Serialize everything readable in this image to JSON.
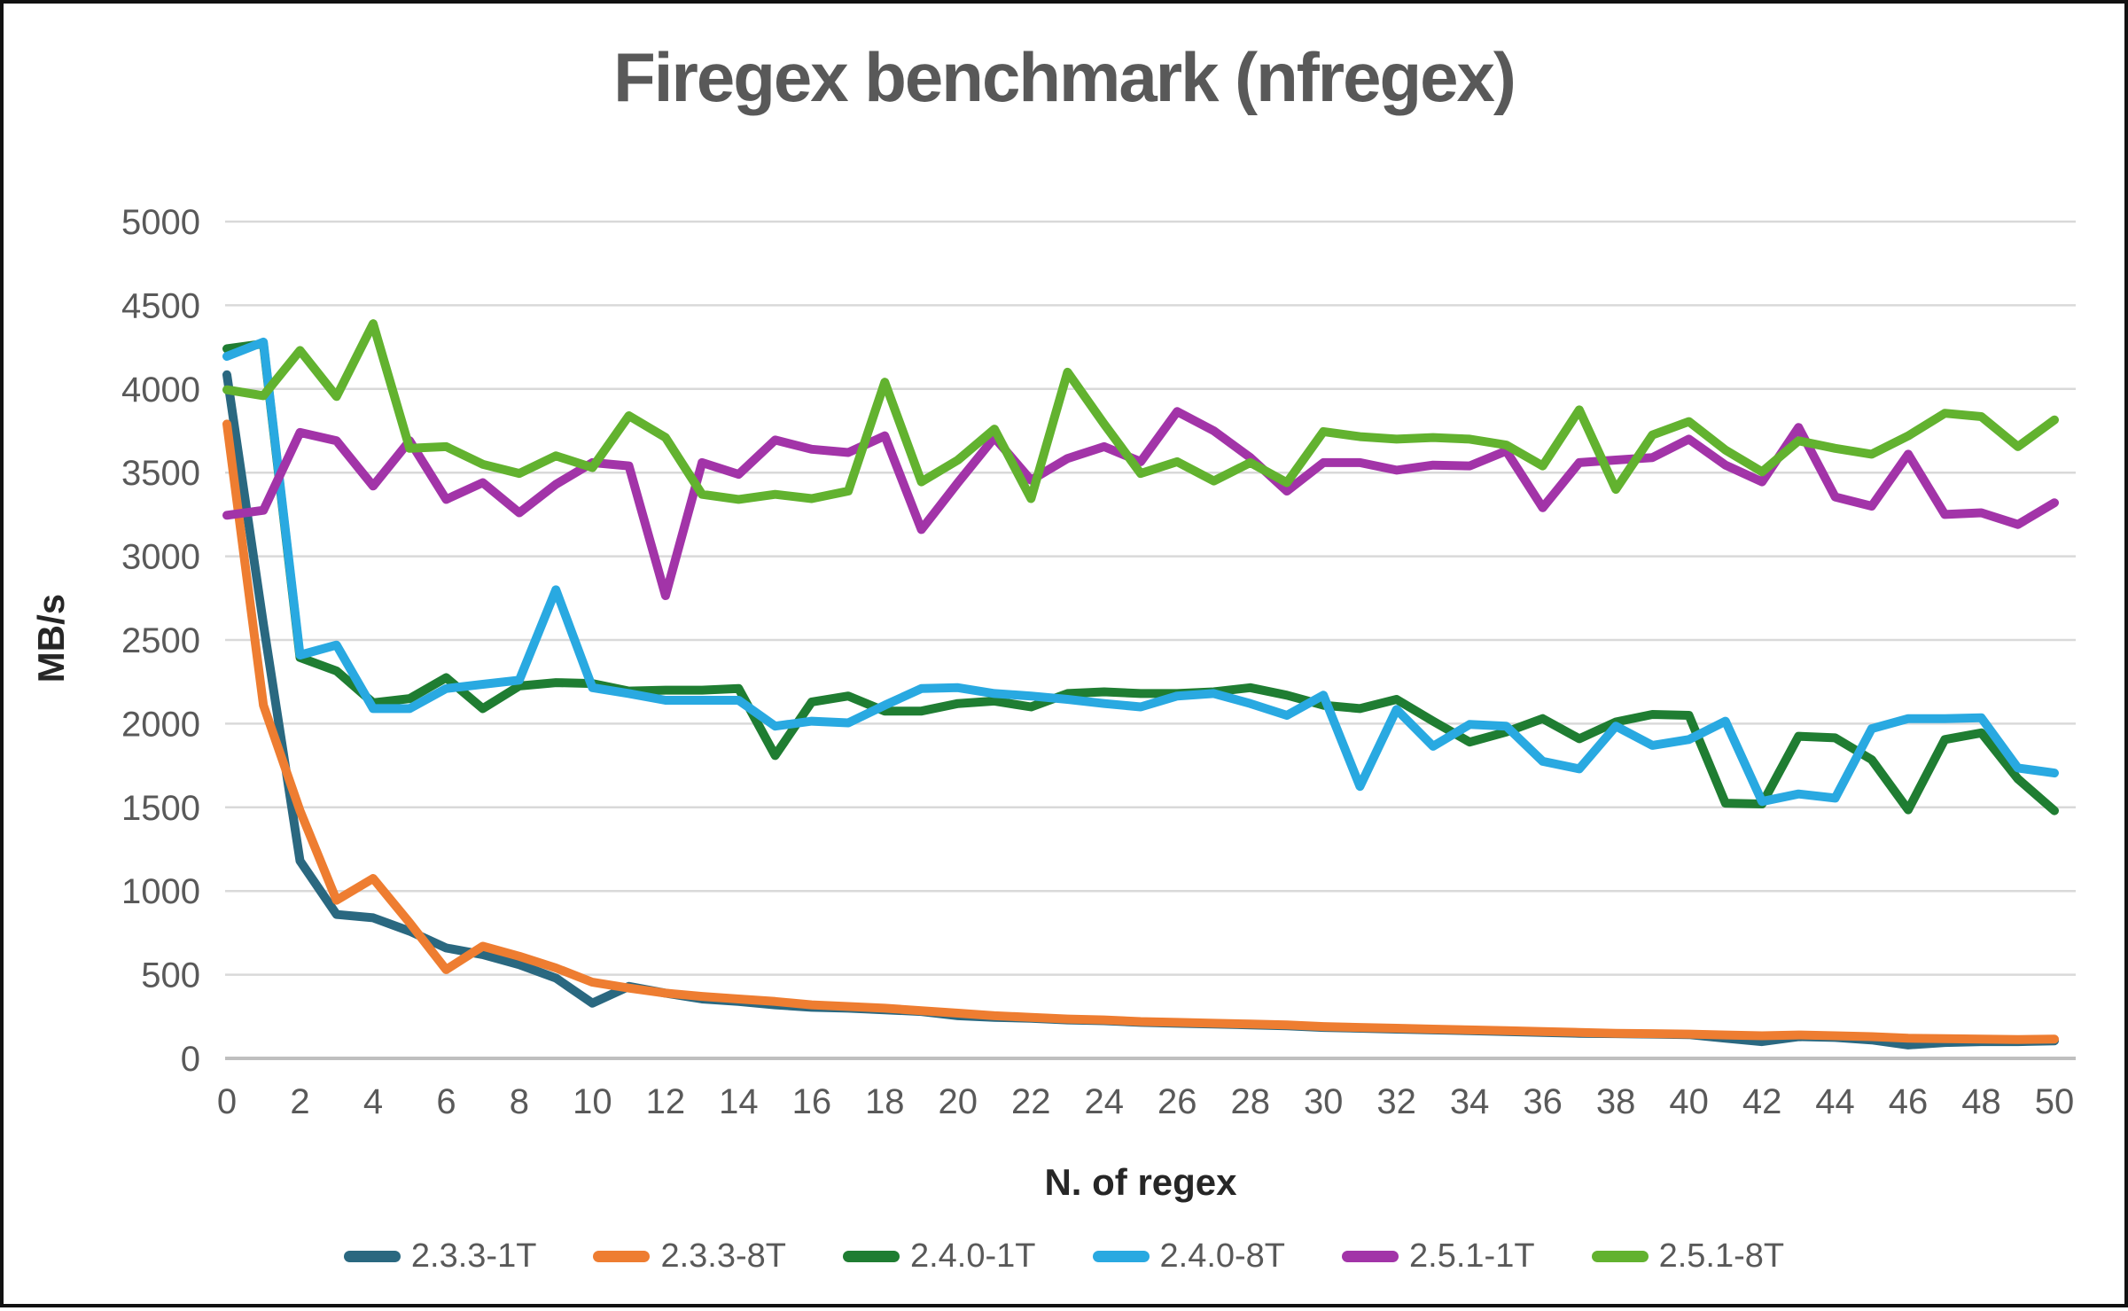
{
  "title": "Firegex benchmark (nfregex)",
  "chart_data": {
    "type": "line",
    "title": "Firegex benchmark (nfregex)",
    "xlabel": "N. of regex",
    "ylabel": "MB/s",
    "xlim": [
      0,
      50
    ],
    "ylim": [
      0,
      5000
    ],
    "y_tick_step": 500,
    "x_tick_step": 2,
    "grid": true,
    "legend_position": "bottom",
    "x": [
      0,
      1,
      2,
      3,
      4,
      5,
      6,
      7,
      8,
      9,
      10,
      11,
      12,
      13,
      14,
      15,
      16,
      17,
      18,
      19,
      20,
      21,
      22,
      23,
      24,
      25,
      26,
      27,
      28,
      29,
      30,
      31,
      32,
      33,
      34,
      35,
      36,
      37,
      38,
      39,
      40,
      41,
      42,
      43,
      44,
      45,
      46,
      47,
      48,
      49,
      50
    ],
    "series": [
      {
        "name": "2.3.3-1T",
        "color": "#2a6880",
        "values": [
          4085,
          2595,
          1180,
          860,
          840,
          760,
          660,
          620,
          560,
          480,
          330,
          430,
          390,
          355,
          340,
          320,
          305,
          300,
          290,
          280,
          255,
          245,
          240,
          230,
          225,
          215,
          210,
          205,
          200,
          195,
          185,
          180,
          175,
          170,
          165,
          160,
          155,
          150,
          148,
          145,
          142,
          120,
          100,
          130,
          125,
          110,
          80,
          95,
          100,
          100,
          105
        ]
      },
      {
        "name": "2.3.3-8T",
        "color": "#ee7d31",
        "values": [
          3790,
          2110,
          1480,
          945,
          1075,
          810,
          530,
          670,
          610,
          540,
          455,
          420,
          390,
          370,
          355,
          340,
          320,
          310,
          300,
          285,
          270,
          255,
          245,
          235,
          230,
          220,
          215,
          210,
          205,
          200,
          190,
          185,
          180,
          175,
          170,
          165,
          160,
          155,
          150,
          148,
          145,
          140,
          135,
          140,
          135,
          130,
          120,
          118,
          115,
          113,
          115
        ]
      },
      {
        "name": "2.4.0-1T",
        "color": "#1f7d32",
        "values": [
          4240,
          4270,
          2395,
          2315,
          2125,
          2150,
          2275,
          2090,
          2225,
          2245,
          2240,
          2195,
          2200,
          2200,
          2210,
          1810,
          2130,
          2165,
          2075,
          2075,
          2120,
          2135,
          2100,
          2180,
          2190,
          2180,
          2180,
          2190,
          2215,
          2170,
          2110,
          2090,
          2145,
          2015,
          1890,
          1950,
          2030,
          1910,
          2010,
          2055,
          2050,
          1525,
          1520,
          1925,
          1915,
          1785,
          1485,
          1905,
          1945,
          1670,
          1480
        ]
      },
      {
        "name": "2.4.0-8T",
        "color": "#29a9e1",
        "values": [
          4195,
          4280,
          2410,
          2470,
          2090,
          2090,
          2210,
          2235,
          2260,
          2800,
          2215,
          2180,
          2140,
          2140,
          2140,
          1985,
          2015,
          2005,
          2110,
          2210,
          2215,
          2180,
          2165,
          2145,
          2120,
          2100,
          2165,
          2180,
          2120,
          2050,
          2170,
          1625,
          2085,
          1865,
          1995,
          1985,
          1775,
          1730,
          1985,
          1870,
          1905,
          2015,
          1535,
          1580,
          1555,
          1970,
          2030,
          2030,
          2035,
          1735,
          1705
        ]
      },
      {
        "name": "2.5.1-1T",
        "color": "#a234a8",
        "values": [
          3245,
          3275,
          3740,
          3690,
          3420,
          3690,
          3340,
          3440,
          3260,
          3430,
          3560,
          3540,
          2765,
          3560,
          3490,
          3695,
          3640,
          3620,
          3720,
          3160,
          3440,
          3710,
          3455,
          3585,
          3655,
          3565,
          3865,
          3750,
          3590,
          3390,
          3560,
          3560,
          3515,
          3545,
          3540,
          3630,
          3290,
          3560,
          3575,
          3590,
          3700,
          3545,
          3445,
          3770,
          3355,
          3300,
          3610,
          3250,
          3260,
          3190,
          3320
        ]
      },
      {
        "name": "2.5.1-8T",
        "color": "#62b22f",
        "values": [
          3995,
          3960,
          4230,
          3955,
          4390,
          3645,
          3655,
          3550,
          3495,
          3600,
          3530,
          3840,
          3710,
          3370,
          3340,
          3370,
          3345,
          3390,
          4040,
          3445,
          3575,
          3760,
          3345,
          4100,
          3790,
          3495,
          3565,
          3450,
          3560,
          3440,
          3745,
          3715,
          3700,
          3710,
          3700,
          3665,
          3540,
          3875,
          3400,
          3725,
          3805,
          3635,
          3505,
          3690,
          3645,
          3610,
          3720,
          3855,
          3835,
          3655,
          3815
        ]
      }
    ]
  },
  "style": {
    "gridline_color": "#d9d9d9",
    "axisline_color": "#bfbfbf",
    "tick_label_color": "#595959",
    "title_color": "#595959"
  }
}
